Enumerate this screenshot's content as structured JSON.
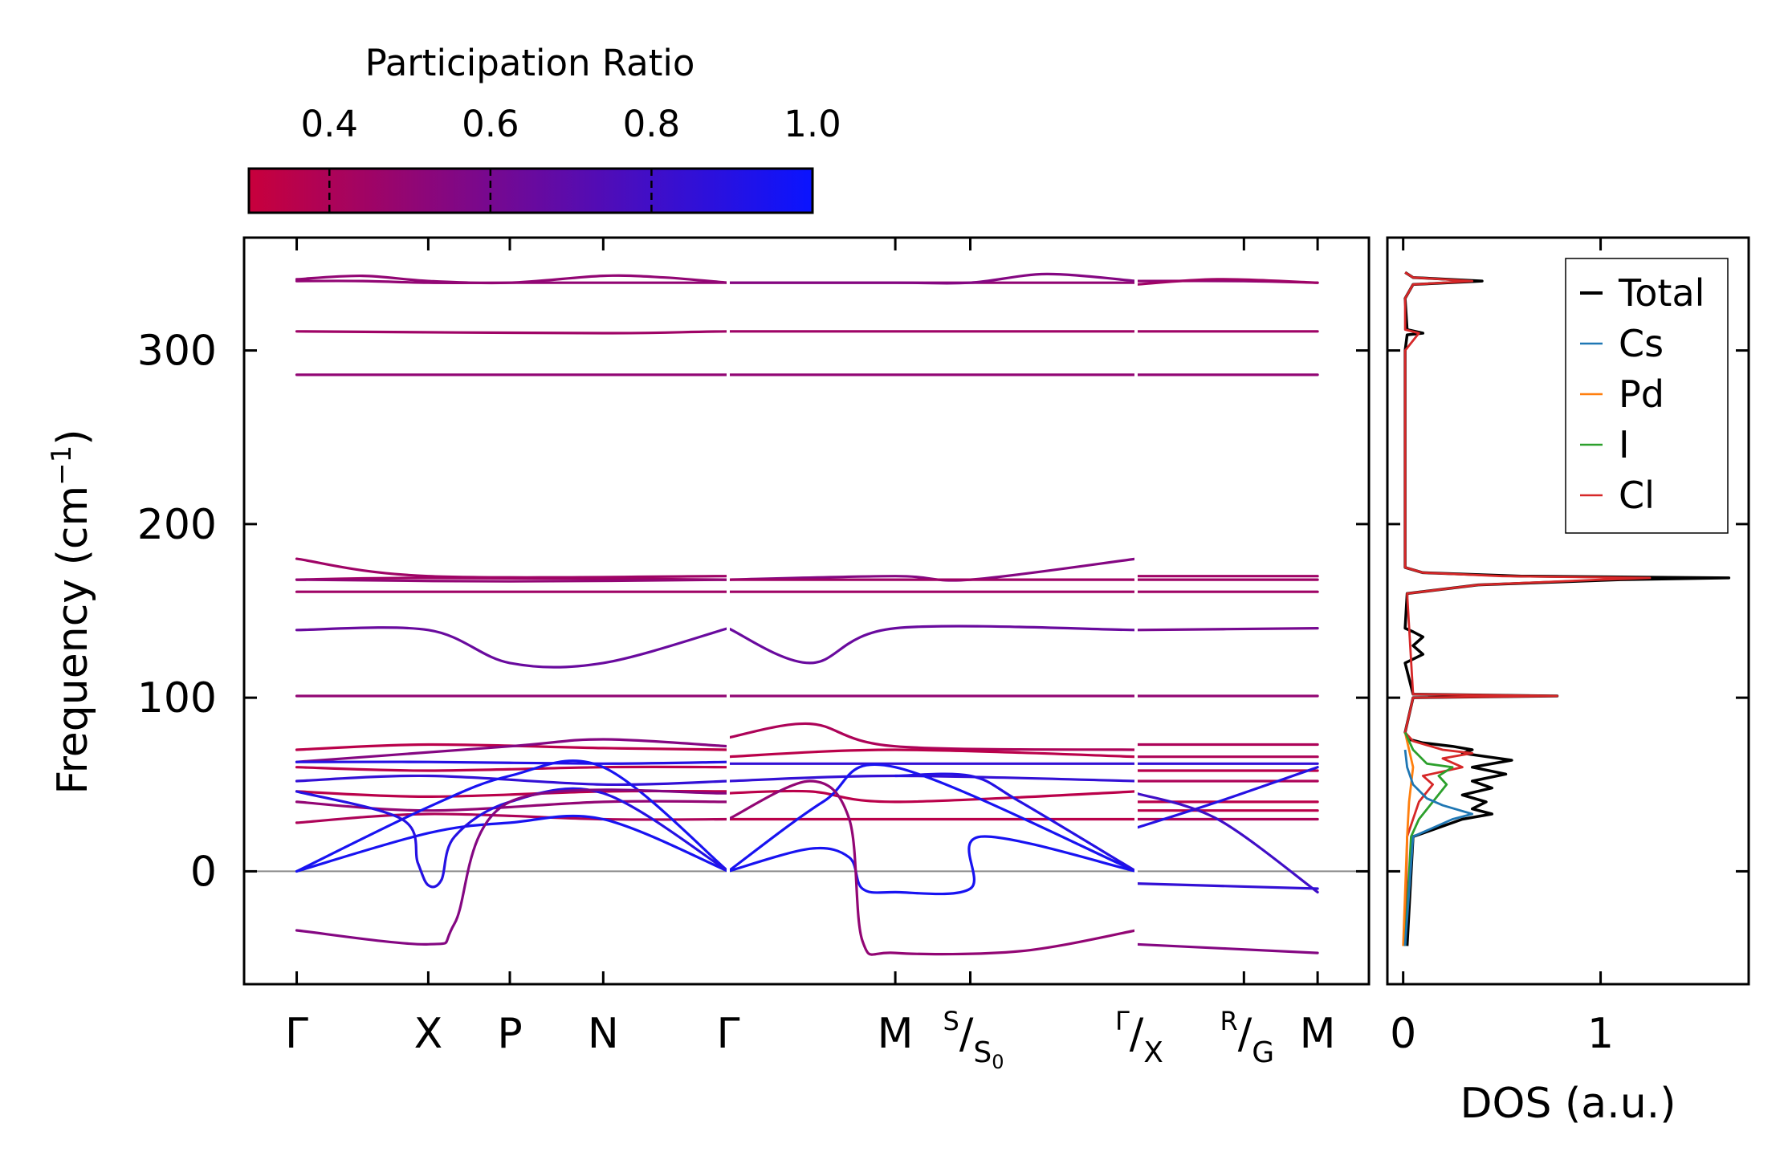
{
  "chart_data": {
    "type": "line",
    "band_plot": {
      "ylabel": "Frequency (cm",
      "ylabel_sup": "−1",
      "ylabel_close": ")",
      "ylim": [
        -65,
        365
      ],
      "yticks": [
        {
          "value": 0,
          "label": "0"
        },
        {
          "value": 100,
          "label": "100"
        },
        {
          "value": 200,
          "label": "200"
        },
        {
          "value": 300,
          "label": "300"
        }
      ],
      "kpoints": [
        {
          "pos": 0.0,
          "label": "Γ"
        },
        {
          "pos": 1.0,
          "label": "X"
        },
        {
          "pos": 1.62,
          "label": "P"
        },
        {
          "pos": 2.33,
          "label": "N"
        },
        {
          "pos": 3.28,
          "label": "Γ"
        },
        {
          "pos": 4.55,
          "label": "M"
        },
        {
          "pos": 5.12,
          "label_top": "S",
          "label_bottom": "S",
          "label_bottom_sub": "0"
        },
        {
          "pos": 6.38,
          "label_top": "Γ",
          "label_bottom": "X"
        },
        {
          "pos": 7.2,
          "label_top": "R",
          "label_bottom": "G"
        },
        {
          "pos": 7.76,
          "label": "M"
        }
      ],
      "xlim": [
        -0.4,
        8.15
      ],
      "segment_breaks": [
        3.28,
        6.38
      ],
      "zero_line": 0,
      "color_low": "#c8003c",
      "color_high": "#0a14ff",
      "bands": [
        {
          "pr": 0.5,
          "x": [
            0,
            0.5,
            1,
            1.62,
            2.33,
            3.28
          ],
          "y": [
            340,
            340,
            339,
            339,
            339,
            339
          ]
        },
        {
          "pr": 0.5,
          "x": [
            0,
            0.5,
            1,
            1.62,
            2.33,
            2.8,
            3.28
          ],
          "y": [
            341,
            343,
            340,
            339,
            343,
            342,
            339
          ]
        },
        {
          "pr": 0.5,
          "x": [
            3.28,
            4.55,
            5.12,
            5.8,
            6.38
          ],
          "y": [
            339,
            339,
            339,
            339,
            339
          ]
        },
        {
          "pr": 0.55,
          "x": [
            3.28,
            4.55,
            5.12,
            5.7,
            6.38
          ],
          "y": [
            339,
            339,
            339,
            344,
            340
          ]
        },
        {
          "pr": 0.5,
          "x": [
            6.38,
            7.2,
            7.76
          ],
          "y": [
            340,
            340,
            339
          ]
        },
        {
          "pr": 0.45,
          "x": [
            6.38,
            7.0,
            7.76
          ],
          "y": [
            338,
            341,
            339
          ]
        },
        {
          "pr": 0.45,
          "x": [
            0,
            2.33,
            3.28,
            4.55,
            6.38,
            7.76
          ],
          "y": [
            311,
            310,
            311,
            311,
            311,
            311
          ]
        },
        {
          "pr": 0.5,
          "x": [
            0,
            2.33,
            3.28,
            4.55,
            6.38,
            7.76
          ],
          "y": [
            286,
            286,
            286,
            286,
            286,
            286
          ]
        },
        {
          "pr": 0.45,
          "x": [
            0,
            1.0,
            3.28
          ],
          "y": [
            180,
            170,
            170
          ]
        },
        {
          "pr": 0.45,
          "x": [
            0,
            1.0,
            3.28
          ],
          "y": [
            168,
            169,
            168
          ]
        },
        {
          "pr": 0.45,
          "x": [
            0,
            1.62,
            3.28
          ],
          "y": [
            161,
            161,
            161
          ]
        },
        {
          "pr": 0.5,
          "x": [
            0,
            1.62,
            3.28
          ],
          "y": [
            168,
            167,
            168
          ]
        },
        {
          "pr": 0.55,
          "x": [
            3.28,
            4.55,
            5.12,
            6.38
          ],
          "y": [
            168,
            170,
            168,
            180
          ]
        },
        {
          "pr": 0.45,
          "x": [
            3.28,
            4.55,
            6.38
          ],
          "y": [
            168,
            168,
            168
          ]
        },
        {
          "pr": 0.45,
          "x": [
            3.28,
            4.55,
            6.38
          ],
          "y": [
            161,
            161,
            161
          ]
        },
        {
          "pr": 0.45,
          "x": [
            6.38,
            7.2,
            7.76
          ],
          "y": [
            170,
            170,
            170
          ]
        },
        {
          "pr": 0.45,
          "x": [
            6.38,
            7.2,
            7.76
          ],
          "y": [
            168,
            168,
            168
          ]
        },
        {
          "pr": 0.45,
          "x": [
            6.38,
            7.2,
            7.76
          ],
          "y": [
            161,
            161,
            161
          ]
        },
        {
          "pr": 0.65,
          "x": [
            0,
            1.0,
            1.62,
            2.33,
            3.28
          ],
          "y": [
            139,
            139,
            120,
            120,
            140
          ]
        },
        {
          "pr": 0.65,
          "x": [
            3.28,
            3.9,
            4.55,
            6.38
          ],
          "y": [
            140,
            120,
            140,
            139
          ]
        },
        {
          "pr": 0.6,
          "x": [
            6.38,
            7.76
          ],
          "y": [
            139,
            140
          ]
        },
        {
          "pr": 0.5,
          "x": [
            0,
            3.28,
            6.38,
            7.76
          ],
          "y": [
            101,
            101,
            101,
            101
          ]
        },
        {
          "pr": 0.35,
          "x": [
            0,
            1.0,
            2.33,
            3.28
          ],
          "y": [
            70,
            73,
            71,
            70
          ]
        },
        {
          "pr": 0.55,
          "x": [
            0,
            1.62,
            2.33,
            3.28
          ],
          "y": [
            63,
            72,
            76,
            72
          ]
        },
        {
          "pr": 0.4,
          "x": [
            3.28,
            3.9,
            4.55,
            6.38
          ],
          "y": [
            77,
            85,
            72,
            70
          ]
        },
        {
          "pr": 0.35,
          "x": [
            3.28,
            4.55,
            6.38
          ],
          "y": [
            66,
            70,
            66
          ]
        },
        {
          "pr": 0.4,
          "x": [
            6.38,
            7.76
          ],
          "y": [
            73,
            73
          ]
        },
        {
          "pr": 0.4,
          "x": [
            6.38,
            7.76
          ],
          "y": [
            66,
            66
          ]
        },
        {
          "pr": 0.9,
          "x": [
            0,
            1.0,
            2.33,
            3.28
          ],
          "y": [
            63,
            63,
            62,
            63
          ]
        },
        {
          "pr": 0.85,
          "x": [
            0,
            1.0,
            2.33,
            3.28
          ],
          "y": [
            52,
            55,
            50,
            52
          ]
        },
        {
          "pr": 0.35,
          "x": [
            0,
            1.0,
            2.33,
            3.28
          ],
          "y": [
            60,
            58,
            60,
            60
          ]
        },
        {
          "pr": 0.85,
          "x": [
            3.28,
            4.55,
            6.38
          ],
          "y": [
            62,
            62,
            62
          ]
        },
        {
          "pr": 0.85,
          "x": [
            3.28,
            4.55,
            6.38
          ],
          "y": [
            52,
            55,
            52
          ]
        },
        {
          "pr": 0.85,
          "x": [
            6.38,
            7.76
          ],
          "y": [
            62,
            62
          ]
        },
        {
          "pr": 0.35,
          "x": [
            6.38,
            7.76
          ],
          "y": [
            58,
            58
          ]
        },
        {
          "pr": 0.4,
          "x": [
            6.38,
            7.76
          ],
          "y": [
            52,
            52
          ]
        },
        {
          "pr": 0.35,
          "x": [
            0,
            1.0,
            2.33,
            3.28
          ],
          "y": [
            46,
            43,
            46,
            46
          ]
        },
        {
          "pr": 0.5,
          "x": [
            0,
            1.0,
            2.33,
            3.28
          ],
          "y": [
            40,
            35,
            40,
            40
          ]
        },
        {
          "pr": 0.35,
          "x": [
            3.28,
            3.9,
            4.55,
            6.38
          ],
          "y": [
            45,
            46,
            40,
            46
          ]
        },
        {
          "pr": 0.35,
          "x": [
            6.38,
            7.76
          ],
          "y": [
            40,
            40
          ]
        },
        {
          "pr": 0.4,
          "x": [
            0,
            1.0,
            2.33,
            3.28
          ],
          "y": [
            28,
            33,
            30,
            30
          ]
        },
        {
          "pr": 0.35,
          "x": [
            3.28,
            4.55,
            6.38
          ],
          "y": [
            30,
            30,
            30
          ]
        },
        {
          "pr": 0.4,
          "x": [
            6.38,
            7.76
          ],
          "y": [
            30,
            30
          ]
        },
        {
          "pr": 0.35,
          "x": [
            6.38,
            7.76
          ],
          "y": [
            35,
            35
          ]
        },
        {
          "pr": 0.95,
          "x": [
            0,
            1.0,
            1.62,
            2.33,
            3.28
          ],
          "y": [
            0,
            37,
            55,
            60,
            0
          ]
        },
        {
          "pr": 0.95,
          "x": [
            0,
            1.0,
            1.62,
            2.33,
            3.28
          ],
          "y": [
            0,
            22,
            28,
            30,
            0
          ]
        },
        {
          "pr": 0.9,
          "x": [
            0,
            0.8,
            0.92,
            1.0,
            1.1,
            1.2,
            1.62,
            2.33,
            3.28
          ],
          "y": [
            46,
            30,
            5,
            -8,
            -5,
            20,
            40,
            45,
            0
          ]
        },
        {
          "pr": 0.95,
          "x": [
            3.28,
            3.9,
            4.2,
            4.3,
            4.55,
            5.12,
            5.2,
            6.38
          ],
          "y": [
            0,
            13,
            8,
            -10,
            -12,
            -10,
            20,
            0
          ]
        },
        {
          "pr": 0.95,
          "x": [
            3.28,
            4.0,
            4.55,
            6.38
          ],
          "y": [
            0,
            40,
            60,
            0
          ]
        },
        {
          "pr": 0.9,
          "x": [
            4.55,
            5.12,
            5.5,
            6.38
          ],
          "y": [
            55,
            55,
            40,
            0
          ]
        },
        {
          "pr": 0.9,
          "x": [
            6.38,
            7.0,
            7.76
          ],
          "y": [
            25,
            40,
            60
          ]
        },
        {
          "pr": 0.8,
          "x": [
            6.38,
            7.0,
            7.76
          ],
          "y": [
            45,
            30,
            -12
          ]
        },
        {
          "pr": 0.85,
          "x": [
            6.38,
            7.76
          ],
          "y": [
            -7,
            -10
          ]
        },
        {
          "pr": 0.55,
          "x": [
            0,
            1.0,
            1.2,
            1.62,
            3.28
          ],
          "y": [
            -34,
            -42,
            -30,
            40,
            45
          ]
        },
        {
          "pr": 0.5,
          "x": [
            3.28,
            3.9,
            4.2,
            4.3,
            4.55,
            5.5,
            6.38
          ],
          "y": [
            30,
            52,
            30,
            -40,
            -47,
            -46,
            -34
          ]
        },
        {
          "pr": 0.55,
          "x": [
            6.38,
            7.76
          ],
          "y": [
            -42,
            -47
          ]
        }
      ]
    },
    "colorbar": {
      "title": "Participation Ratio",
      "range": [
        0.3,
        1.0
      ],
      "ticks": [
        {
          "value": 0.4,
          "label": "0.4"
        },
        {
          "value": 0.6,
          "label": "0.6"
        },
        {
          "value": 0.8,
          "label": "0.8"
        },
        {
          "value": 1.0,
          "label": "1.0"
        }
      ]
    },
    "dos_plot": {
      "xlabel": "DOS (a.u.)",
      "xlim": [
        -0.08,
        1.75
      ],
      "xticks": [
        {
          "value": 0,
          "label": "0"
        },
        {
          "value": 1,
          "label": "1"
        }
      ],
      "legend": {
        "placement": "top-right",
        "entries": [
          {
            "name": "Total",
            "color": "#000000"
          },
          {
            "name": "Cs",
            "color": "#1f77b4"
          },
          {
            "name": "Pd",
            "color": "#ff7f0e"
          },
          {
            "name": "I",
            "color": "#2ca02c"
          },
          {
            "name": "Cl",
            "color": "#d62728"
          }
        ]
      },
      "series": [
        {
          "name": "Total",
          "color": "#000000",
          "freq": [
            -43,
            20,
            30,
            33,
            36,
            40,
            44,
            48,
            52,
            56,
            60,
            64,
            68,
            70,
            72,
            74,
            76,
            80,
            100,
            101,
            102,
            120,
            125,
            130,
            135,
            138,
            140,
            160,
            165,
            168,
            169,
            170,
            172,
            175,
            300,
            309,
            310,
            312,
            330,
            338,
            340,
            342,
            345
          ],
          "dos": [
            0.02,
            0.05,
            0.3,
            0.45,
            0.35,
            0.42,
            0.3,
            0.45,
            0.35,
            0.52,
            0.35,
            0.55,
            0.3,
            0.35,
            0.25,
            0.1,
            0.03,
            0.01,
            0.05,
            0.78,
            0.05,
            0.01,
            0.1,
            0.05,
            0.1,
            0.05,
            0.01,
            0.02,
            0.38,
            1.1,
            1.65,
            0.6,
            0.1,
            0.01,
            0.01,
            0.02,
            0.1,
            0.02,
            0.01,
            0.05,
            0.4,
            0.05,
            0.01
          ]
        },
        {
          "name": "Cl",
          "color": "#d62728",
          "freq": [
            -43,
            20,
            40,
            50,
            55,
            60,
            65,
            68,
            70,
            75,
            80,
            100,
            101,
            102,
            160,
            165,
            168,
            169,
            170,
            172,
            175,
            300,
            310,
            312,
            330,
            338,
            340,
            342,
            345
          ],
          "dos": [
            0.01,
            0.02,
            0.08,
            0.15,
            0.1,
            0.3,
            0.2,
            0.35,
            0.2,
            0.05,
            0.01,
            0.05,
            0.78,
            0.05,
            0.02,
            0.38,
            1.0,
            1.25,
            0.5,
            0.1,
            0.01,
            0.01,
            0.08,
            0.01,
            0.01,
            0.05,
            0.35,
            0.05,
            0.01
          ]
        },
        {
          "name": "Pd",
          "color": "#ff7f0e",
          "freq": [
            -43,
            20,
            40,
            60,
            70,
            80
          ],
          "dos": [
            0.0,
            0.02,
            0.03,
            0.05,
            0.03,
            0.01
          ]
        },
        {
          "name": "I",
          "color": "#2ca02c",
          "freq": [
            -43,
            20,
            30,
            40,
            50,
            55,
            60,
            62,
            70,
            80
          ],
          "dos": [
            0.01,
            0.04,
            0.08,
            0.15,
            0.22,
            0.18,
            0.25,
            0.12,
            0.05,
            0.01
          ]
        },
        {
          "name": "Cs",
          "color": "#1f77b4",
          "freq": [
            -43,
            20,
            30,
            33,
            38,
            42,
            50,
            60,
            70
          ],
          "dos": [
            0.01,
            0.05,
            0.25,
            0.35,
            0.2,
            0.12,
            0.05,
            0.02,
            0.01
          ]
        }
      ]
    }
  }
}
